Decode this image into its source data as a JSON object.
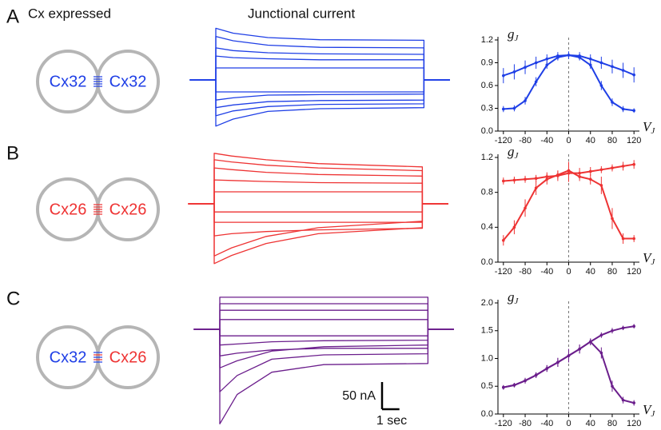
{
  "header": {
    "column_cells": "Cx expressed",
    "column_current": "Junctional current"
  },
  "panels": [
    {
      "letter": "A",
      "cells": [
        {
          "label": "Cx32",
          "color": "#1f3fe6"
        },
        {
          "label": "Cx32",
          "color": "#1f3fe6"
        }
      ]
    },
    {
      "letter": "B",
      "cells": [
        {
          "label": "Cx26",
          "color": "#ee3333"
        },
        {
          "label": "Cx26",
          "color": "#ee3333"
        }
      ]
    },
    {
      "letter": "C",
      "cells": [
        {
          "label": "Cx32",
          "color": "#1f3fe6"
        },
        {
          "label": "Cx26",
          "color": "#ee3333"
        }
      ]
    }
  ],
  "scale_bar": {
    "y": {
      "value": 50,
      "label": "50 nA"
    },
    "x": {
      "value": 1,
      "label": "1 sec"
    }
  },
  "chart_data": [
    {
      "type": "traces",
      "color": "#1f3fe6",
      "x": [
        -1.5,
        0,
        0,
        1,
        3,
        6,
        12,
        12,
        13.5
      ],
      "series": [
        {
          "values": [
            0,
            0,
            95,
            86,
            78,
            74,
            73,
            0,
            0
          ]
        },
        {
          "values": [
            0,
            0,
            80,
            72,
            64,
            60,
            59,
            0,
            0
          ]
        },
        {
          "values": [
            0,
            0,
            59,
            54,
            50,
            48,
            47,
            0,
            0
          ]
        },
        {
          "values": [
            0,
            0,
            44,
            41,
            39,
            37,
            37,
            0,
            0
          ]
        },
        {
          "values": [
            0,
            0,
            22,
            22,
            22,
            22,
            22,
            0,
            0
          ]
        },
        {
          "values": [
            0,
            0,
            -22,
            -22,
            -22,
            -22,
            -22,
            0,
            0
          ]
        },
        {
          "values": [
            0,
            0,
            -37,
            -33,
            -28,
            -27,
            -26,
            0,
            0
          ]
        },
        {
          "values": [
            0,
            0,
            -51,
            -46,
            -40,
            -38,
            -37,
            0,
            0
          ]
        },
        {
          "values": [
            0,
            0,
            -66,
            -57,
            -49,
            -45,
            -44,
            0,
            0
          ]
        },
        {
          "values": [
            0,
            0,
            -85,
            -72,
            -58,
            -53,
            -51,
            0,
            0
          ]
        }
      ]
    },
    {
      "type": "traces",
      "color": "#ee3333",
      "x": [
        -1.5,
        0,
        0,
        1,
        3,
        6,
        12,
        12,
        13.5
      ],
      "series": [
        {
          "values": [
            0,
            0,
            93,
            88,
            81,
            74,
            68,
            0,
            0
          ]
        },
        {
          "values": [
            0,
            0,
            81,
            77,
            71,
            66,
            61,
            0,
            0
          ]
        },
        {
          "values": [
            0,
            0,
            66,
            63,
            58,
            54,
            51,
            0,
            0
          ]
        },
        {
          "values": [
            0,
            0,
            44,
            43,
            41,
            39,
            38,
            0,
            0
          ]
        },
        {
          "values": [
            0,
            0,
            22,
            22,
            22,
            22,
            22,
            0,
            0
          ]
        },
        {
          "values": [
            0,
            0,
            -15,
            -15,
            -15,
            -15,
            -15,
            0,
            0
          ]
        },
        {
          "values": [
            0,
            0,
            -34,
            -34,
            -34,
            -34,
            -34,
            0,
            0
          ]
        },
        {
          "values": [
            0,
            0,
            -59,
            -55,
            -51,
            -48,
            -45,
            0,
            0
          ]
        },
        {
          "values": [
            0,
            0,
            -96,
            -81,
            -60,
            -44,
            -32,
            0,
            0
          ]
        },
        {
          "values": [
            0,
            0,
            -110,
            -95,
            -73,
            -55,
            -44,
            0,
            0
          ]
        }
      ]
    },
    {
      "type": "traces",
      "color": "#6b1e8c",
      "x": [
        -1.5,
        0,
        0,
        1,
        3,
        6,
        12,
        12,
        13.5
      ],
      "series": [
        {
          "values": [
            0,
            0,
            59,
            59,
            59,
            59,
            59,
            0,
            0
          ]
        },
        {
          "values": [
            0,
            0,
            47,
            47,
            47,
            47,
            47,
            0,
            0
          ]
        },
        {
          "values": [
            0,
            0,
            35,
            35,
            35,
            35,
            35,
            0,
            0
          ]
        },
        {
          "values": [
            0,
            0,
            18,
            18,
            18,
            18,
            18,
            0,
            0
          ]
        },
        {
          "values": [
            0,
            0,
            -12,
            -12,
            -12,
            -12,
            -12,
            0,
            0
          ]
        },
        {
          "values": [
            0,
            0,
            -29,
            -27,
            -23,
            -21,
            -20,
            0,
            0
          ]
        },
        {
          "values": [
            0,
            0,
            -49,
            -44,
            -38,
            -35,
            -35,
            0,
            0
          ]
        },
        {
          "values": [
            0,
            0,
            -71,
            -58,
            -40,
            -32,
            -29,
            0,
            0
          ]
        },
        {
          "values": [
            0,
            0,
            -115,
            -85,
            -55,
            -47,
            -45,
            0,
            0
          ]
        },
        {
          "values": [
            0,
            0,
            -174,
            -120,
            -79,
            -65,
            -63,
            0,
            0
          ]
        }
      ]
    },
    {
      "type": "errorbar",
      "y_label": "g",
      "y_label_sub": "J",
      "x_label": "V",
      "x_label_sub": "J",
      "xlim": [
        -130,
        130
      ],
      "xticks": [
        -120,
        -80,
        -40,
        0,
        40,
        80,
        120
      ],
      "ylim": [
        0,
        1.2
      ],
      "yticks": [
        {
          "value": 0,
          "label": "0.0"
        },
        0.3,
        0.6,
        0.9,
        1.2
      ],
      "x": [
        -120,
        -100,
        -80,
        -60,
        -40,
        -20,
        0,
        20,
        40,
        60,
        80,
        100,
        120
      ],
      "series": [
        {
          "color": "#1f3fe6",
          "values": [
            0.73,
            0.78,
            0.84,
            0.9,
            0.95,
            0.99,
            1.0,
            0.99,
            0.95,
            0.9,
            0.85,
            0.8,
            0.74
          ],
          "errors": [
            0.1,
            0.1,
            0.09,
            0.08,
            0.06,
            0.05,
            0.05,
            0.05,
            0.06,
            0.08,
            0.09,
            0.1,
            0.1
          ]
        },
        {
          "color": "#1f3fe6",
          "values": [
            0.29,
            0.3,
            0.4,
            0.65,
            0.87,
            0.97,
            1.0,
            0.97,
            0.87,
            0.6,
            0.38,
            0.29,
            0.27
          ],
          "errors": [
            0.04,
            0.04,
            0.05,
            0.06,
            0.05,
            0.04,
            0.04,
            0.04,
            0.05,
            0.06,
            0.05,
            0.04,
            0.03
          ]
        }
      ]
    },
    {
      "type": "errorbar",
      "y_label": "g",
      "y_label_sub": "J",
      "x_label": "V",
      "x_label_sub": "J",
      "xlim": [
        -130,
        130
      ],
      "xticks": [
        -120,
        -80,
        -40,
        0,
        40,
        80,
        120
      ],
      "ylim": [
        0,
        1.2
      ],
      "yticks": [
        {
          "value": 0,
          "label": "0.0"
        },
        0.4,
        0.8,
        1.2
      ],
      "x": [
        -120,
        -100,
        -80,
        -60,
        -40,
        -20,
        0,
        20,
        40,
        60,
        80,
        100,
        120
      ],
      "series": [
        {
          "color": "#ee3333",
          "values": [
            0.93,
            0.94,
            0.95,
            0.96,
            0.98,
            0.99,
            1.02,
            1.02,
            1.04,
            1.06,
            1.08,
            1.1,
            1.12
          ],
          "errors": [
            0.04,
            0.04,
            0.04,
            0.04,
            0.05,
            0.06,
            0.1,
            0.06,
            0.05,
            0.04,
            0.04,
            0.05,
            0.05
          ]
        },
        {
          "color": "#ee3333",
          "values": [
            0.25,
            0.4,
            0.62,
            0.85,
            0.95,
            1.0,
            1.05,
            0.98,
            0.95,
            0.88,
            0.5,
            0.27,
            0.27
          ],
          "errors": [
            0.06,
            0.08,
            0.1,
            0.08,
            0.06,
            0.05,
            0.1,
            0.05,
            0.06,
            0.1,
            0.12,
            0.06,
            0.04
          ]
        }
      ]
    },
    {
      "type": "errorbar",
      "y_label": "g",
      "y_label_sub": "J",
      "x_label": "V",
      "x_label_sub": "J",
      "xlim": [
        -130,
        130
      ],
      "xticks": [
        -120,
        -80,
        -40,
        0,
        40,
        80,
        120
      ],
      "ylim": [
        0,
        2.0
      ],
      "yticks": [
        {
          "value": 0,
          "label": "0.0"
        },
        0.5,
        {
          "value": 1,
          "label": "1.0"
        },
        1.5,
        {
          "value": 2,
          "label": "2.0"
        }
      ],
      "x": [
        -120,
        -100,
        -80,
        -60,
        -40,
        -20,
        0,
        20,
        40,
        60,
        80,
        100,
        120
      ],
      "series": [
        {
          "color": "#6b1e8c",
          "values": [
            0.48,
            0.52,
            0.6,
            0.7,
            0.82,
            0.93,
            1.05,
            1.17,
            1.3,
            1.42,
            1.5,
            1.55,
            1.58
          ],
          "errors": [
            0.04,
            0.04,
            0.05,
            0.05,
            0.06,
            0.08,
            0.12,
            0.08,
            0.06,
            0.05,
            0.05,
            0.04,
            0.04
          ]
        },
        {
          "color": "#6b1e8c",
          "values": [
            0.48,
            0.52,
            0.6,
            0.7,
            0.82,
            0.93,
            1.05,
            1.17,
            1.3,
            1.1,
            0.5,
            0.25,
            0.2
          ],
          "errors": [
            0.04,
            0.04,
            0.05,
            0.05,
            0.06,
            0.08,
            0.12,
            0.08,
            0.06,
            0.1,
            0.1,
            0.06,
            0.05
          ]
        }
      ]
    }
  ]
}
